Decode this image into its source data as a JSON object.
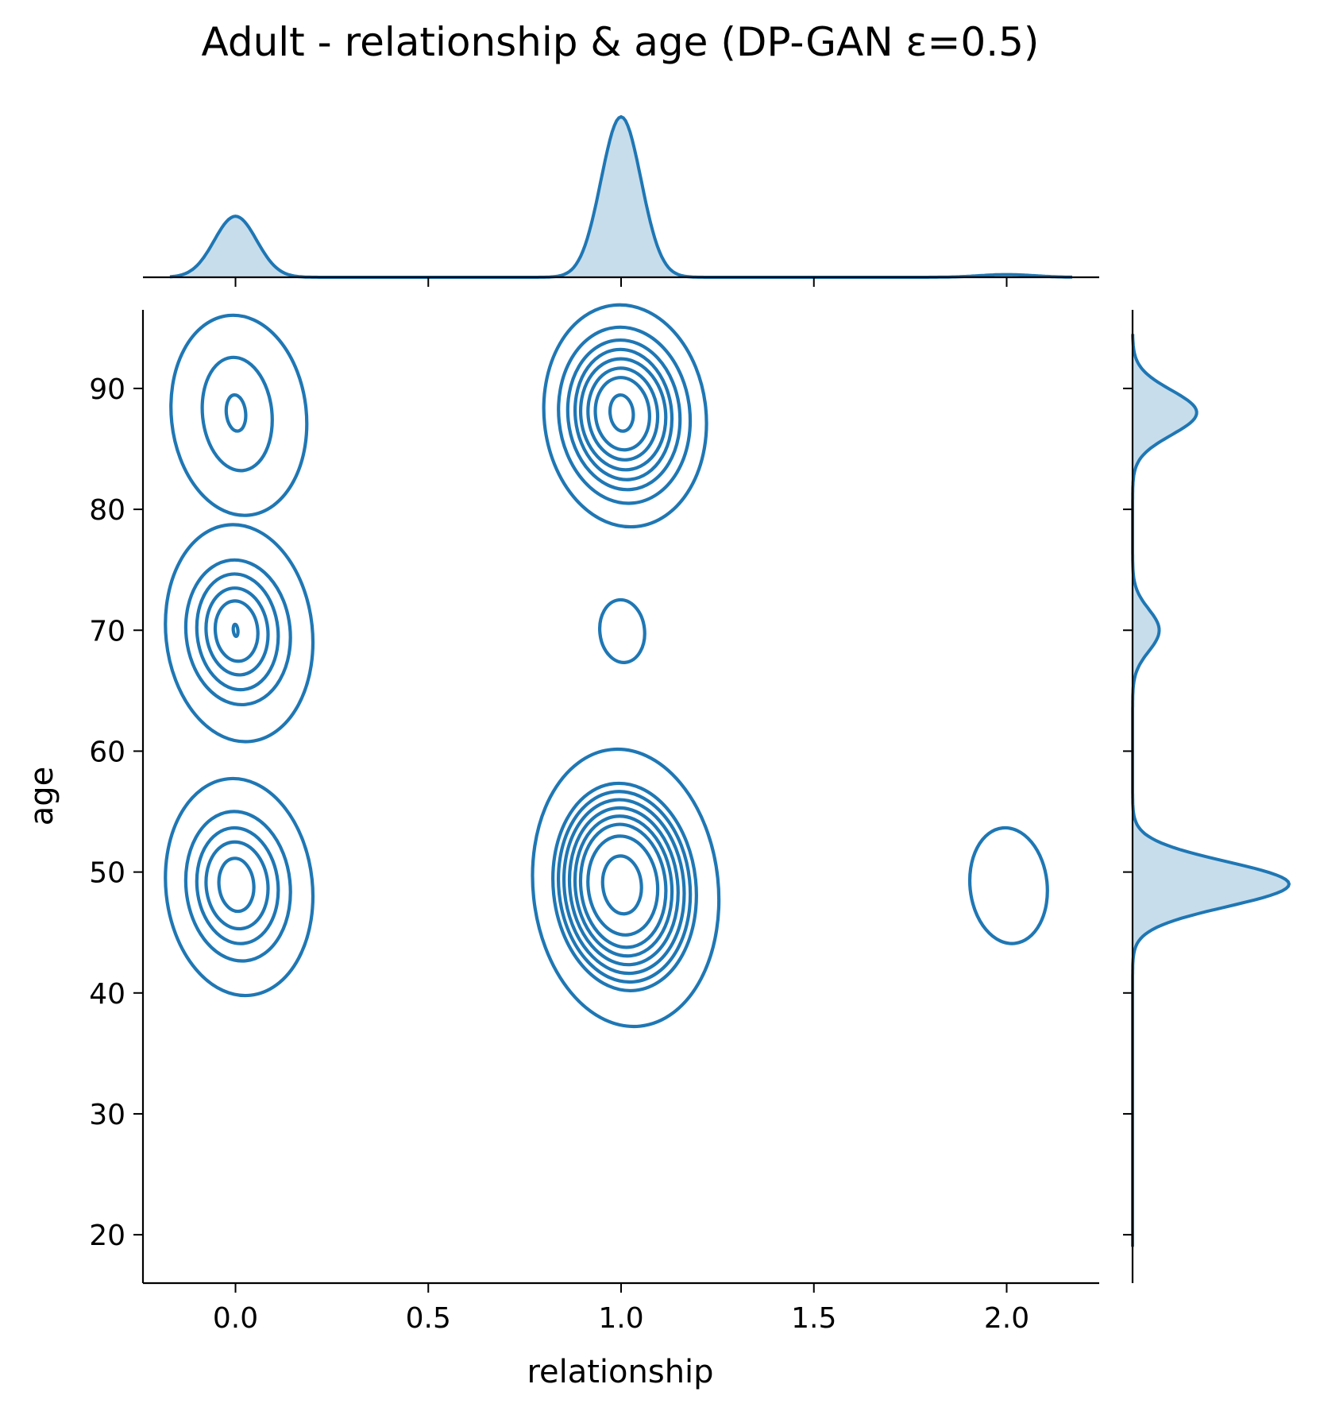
{
  "chart_data": {
    "type": "kde_joint",
    "title": "Adult - relationship & age (DP-GAN ε=0.5)",
    "xlabel": "relationship",
    "ylabel": "age",
    "xlim": [
      -0.24,
      2.24
    ],
    "ylim": [
      16,
      96.5
    ],
    "xticks": [
      0.0,
      0.5,
      1.0,
      1.5,
      2.0
    ],
    "xtick_labels": [
      "0.0",
      "0.5",
      "1.0",
      "1.5",
      "2.0"
    ],
    "yticks": [
      20,
      30,
      40,
      50,
      60,
      70,
      80,
      90
    ],
    "ytick_labels": [
      "20",
      "30",
      "40",
      "50",
      "60",
      "70",
      "80",
      "90"
    ],
    "grid": false,
    "color": "#1f77b4",
    "joint_contours": [
      {
        "cx": 0.0,
        "cy": 88,
        "radii": [
          [
            0.175,
            8.3
          ],
          [
            0.09,
            4.7
          ],
          [
            0.025,
            1.5
          ]
        ]
      },
      {
        "cx": 0.0,
        "cy": 70,
        "radii": [
          [
            0.19,
            9.0
          ],
          [
            0.135,
            6.0
          ],
          [
            0.105,
            4.8
          ],
          [
            0.08,
            3.6
          ],
          [
            0.055,
            2.5
          ],
          [
            0.006,
            0.5
          ]
        ]
      },
      {
        "cx": 0.0,
        "cy": 49,
        "radii": [
          [
            0.19,
            9.0
          ],
          [
            0.135,
            6.2
          ],
          [
            0.105,
            4.8
          ],
          [
            0.08,
            3.6
          ],
          [
            0.045,
            2.2
          ]
        ]
      },
      {
        "cx": 1.0,
        "cy": 88,
        "radii": [
          [
            0.21,
            9.2
          ],
          [
            0.17,
            7.3
          ],
          [
            0.145,
            6.2
          ],
          [
            0.125,
            5.4
          ],
          [
            0.11,
            4.6
          ],
          [
            0.09,
            3.8
          ],
          [
            0.07,
            3.0
          ],
          [
            0.03,
            1.5
          ]
        ]
      },
      {
        "cx": 1.0,
        "cy": 70,
        "radii": [
          [
            0.058,
            2.6
          ]
        ]
      },
      {
        "cx": 1.0,
        "cy": 49,
        "radii": [
          [
            0.24,
            11.5
          ],
          [
            0.185,
            8.6
          ],
          [
            0.17,
            7.9
          ],
          [
            0.155,
            7.2
          ],
          [
            0.14,
            6.5
          ],
          [
            0.125,
            5.8
          ],
          [
            0.11,
            5.1
          ],
          [
            0.09,
            4.1
          ],
          [
            0.05,
            2.4
          ]
        ]
      },
      {
        "cx": 2.0,
        "cy": 49,
        "radii": [
          [
            0.1,
            4.8
          ]
        ]
      }
    ],
    "marginal_x": {
      "peaks": [
        {
          "x": 0.0,
          "density": 0.38,
          "width": 0.055
        },
        {
          "x": 1.0,
          "density": 1.0,
          "width": 0.052
        },
        {
          "x": 2.0,
          "density": 0.017,
          "width": 0.07
        }
      ],
      "range": [
        -0.17,
        2.17
      ]
    },
    "marginal_y": {
      "peaks": [
        {
          "y": 88,
          "density": 0.41,
          "width": 1.85
        },
        {
          "y": 70,
          "density": 0.17,
          "width": 1.75
        },
        {
          "y": 49,
          "density": 1.0,
          "width": 1.85
        }
      ],
      "range": [
        19,
        94.5
      ]
    }
  }
}
